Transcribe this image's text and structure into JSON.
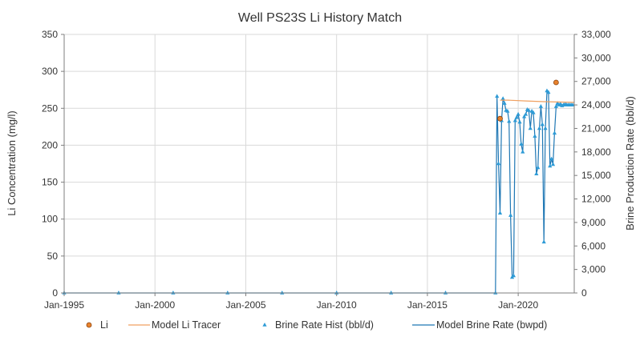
{
  "chart_data": {
    "type": "line",
    "title": "Well PS23S Li History Match",
    "xlabel": "",
    "ylabel": "Li Concentration (mg/l)",
    "y2label": "Brine Production Rate (bbl/d)",
    "xlim": [
      "1995-01-01",
      "2023-02-01"
    ],
    "ylim": [
      0,
      350
    ],
    "y2lim": [
      0,
      33000
    ],
    "grid": true,
    "legend_position": "bottom",
    "x_ticks": [
      "1995-01-01",
      "2000-01-01",
      "2005-01-01",
      "2010-01-01",
      "2015-01-01",
      "2020-01-01"
    ],
    "x_tick_labels": [
      "Jan-1995",
      "Jan-2000",
      "Jan-2005",
      "Jan-2010",
      "Jan-2015",
      "Jan-2020"
    ],
    "y_ticks": [
      0,
      50,
      100,
      150,
      200,
      250,
      300,
      350
    ],
    "y_tick_labels": [
      "0",
      "50",
      "100",
      "150",
      "200",
      "250",
      "300",
      "350"
    ],
    "y2_ticks": [
      0,
      3000,
      6000,
      9000,
      12000,
      15000,
      18000,
      21000,
      24000,
      27000,
      30000,
      33000
    ],
    "y2_tick_labels": [
      "0",
      "3,000",
      "6,000",
      "9,000",
      "12,000",
      "15,000",
      "18,000",
      "21,000",
      "24,000",
      "27,000",
      "30,000",
      "33,000"
    ],
    "colors": {
      "li": "#E8822C",
      "li_edge": "#8B4513",
      "model_li": "#F0A060",
      "brine_hist": "#2E9BD6",
      "model_brine": "#1F77B4",
      "grid": "#D9D9D9",
      "axis": "#7F7F7F"
    },
    "series": [
      {
        "name": "Li",
        "marker": "circle",
        "axis": "left",
        "x": [
          "2019-01-01",
          "2022-02-01"
        ],
        "y": [
          236,
          285
        ]
      },
      {
        "name": "Model Li Tracer",
        "marker": "line",
        "axis": "left",
        "x": [
          "2019-01-01",
          "2019-06-01",
          "2020-06-01",
          "2021-06-01",
          "2023-02-01"
        ],
        "y": [
          261,
          261,
          260,
          259,
          258
        ]
      },
      {
        "name": "Brine Rate Hist (bbl/d)",
        "marker": "triangle",
        "axis": "right",
        "x": [
          "1995-01-01",
          "1998-01-01",
          "2001-01-01",
          "2004-01-01",
          "2007-01-01",
          "2010-01-01",
          "2013-01-01",
          "2016-01-01",
          "2018-10-01",
          "2018-11-01",
          "2018-12-01",
          "2019-01-01",
          "2019-02-01",
          "2019-03-01",
          "2019-04-01",
          "2019-05-01",
          "2019-06-01",
          "2019-07-01",
          "2019-08-01",
          "2019-09-01",
          "2019-10-01",
          "2019-11-01",
          "2019-12-01",
          "2020-01-01",
          "2020-02-01",
          "2020-03-01",
          "2020-04-01",
          "2020-05-01",
          "2020-06-01",
          "2020-07-01",
          "2020-08-01",
          "2020-09-01",
          "2020-10-01",
          "2020-11-01",
          "2020-12-01",
          "2021-01-01",
          "2021-02-01",
          "2021-03-01",
          "2021-04-01",
          "2021-05-01",
          "2021-06-01",
          "2021-07-01",
          "2021-08-01",
          "2021-09-01",
          "2021-10-01",
          "2021-11-01",
          "2021-12-01",
          "2022-01-01",
          "2022-02-01",
          "2022-03-01",
          "2022-04-01",
          "2022-05-01",
          "2022-06-01",
          "2022-07-01",
          "2022-08-01",
          "2022-09-01",
          "2022-10-01",
          "2022-11-01",
          "2022-12-01",
          "2023-01-01"
        ],
        "y": [
          0,
          0,
          0,
          0,
          0,
          0,
          0,
          0,
          0,
          25100,
          16500,
          10200,
          22000,
          24800,
          24200,
          23300,
          23200,
          21900,
          9900,
          2000,
          2200,
          22000,
          22400,
          22800,
          21800,
          19000,
          18000,
          22500,
          22800,
          23400,
          23300,
          21000,
          23200,
          23000,
          20000,
          15200,
          16000,
          21000,
          23800,
          21500,
          6500,
          21000,
          25800,
          25600,
          16200,
          17100,
          16400,
          20400,
          23800,
          24200,
          24000,
          24100,
          23900,
          24000,
          24100,
          24000,
          24000,
          24000,
          24000,
          24000
        ]
      },
      {
        "name": "Model Brine Rate (bwpd)",
        "marker": "line",
        "axis": "right",
        "x": [
          "1995-01-01",
          "2018-10-01",
          "2018-11-01",
          "2018-12-01",
          "2019-01-01",
          "2019-02-01",
          "2019-03-01",
          "2019-04-01",
          "2019-05-01",
          "2019-06-01",
          "2019-07-01",
          "2019-08-01",
          "2019-09-01",
          "2019-10-01",
          "2019-11-01",
          "2019-12-01",
          "2020-01-01",
          "2020-02-01",
          "2020-03-01",
          "2020-04-01",
          "2020-05-01",
          "2020-06-01",
          "2020-07-01",
          "2020-08-01",
          "2020-09-01",
          "2020-10-01",
          "2020-11-01",
          "2020-12-01",
          "2021-01-01",
          "2021-02-01",
          "2021-03-01",
          "2021-04-01",
          "2021-05-01",
          "2021-06-01",
          "2021-07-01",
          "2021-08-01",
          "2021-09-01",
          "2021-10-01",
          "2021-11-01",
          "2021-12-01",
          "2022-01-01",
          "2022-02-01",
          "2022-03-01",
          "2022-06-01",
          "2022-09-01",
          "2023-01-01"
        ],
        "y": [
          0,
          0,
          25100,
          16500,
          10200,
          22000,
          24800,
          24200,
          23300,
          23200,
          21900,
          9900,
          2000,
          2200,
          22000,
          22400,
          22800,
          21800,
          19000,
          18000,
          22500,
          22800,
          23400,
          23300,
          21000,
          23200,
          23000,
          20000,
          15200,
          16000,
          21000,
          23800,
          21500,
          6500,
          21000,
          25800,
          25600,
          16200,
          17100,
          16400,
          20400,
          23800,
          24200,
          24000,
          24000,
          24000
        ]
      }
    ]
  }
}
